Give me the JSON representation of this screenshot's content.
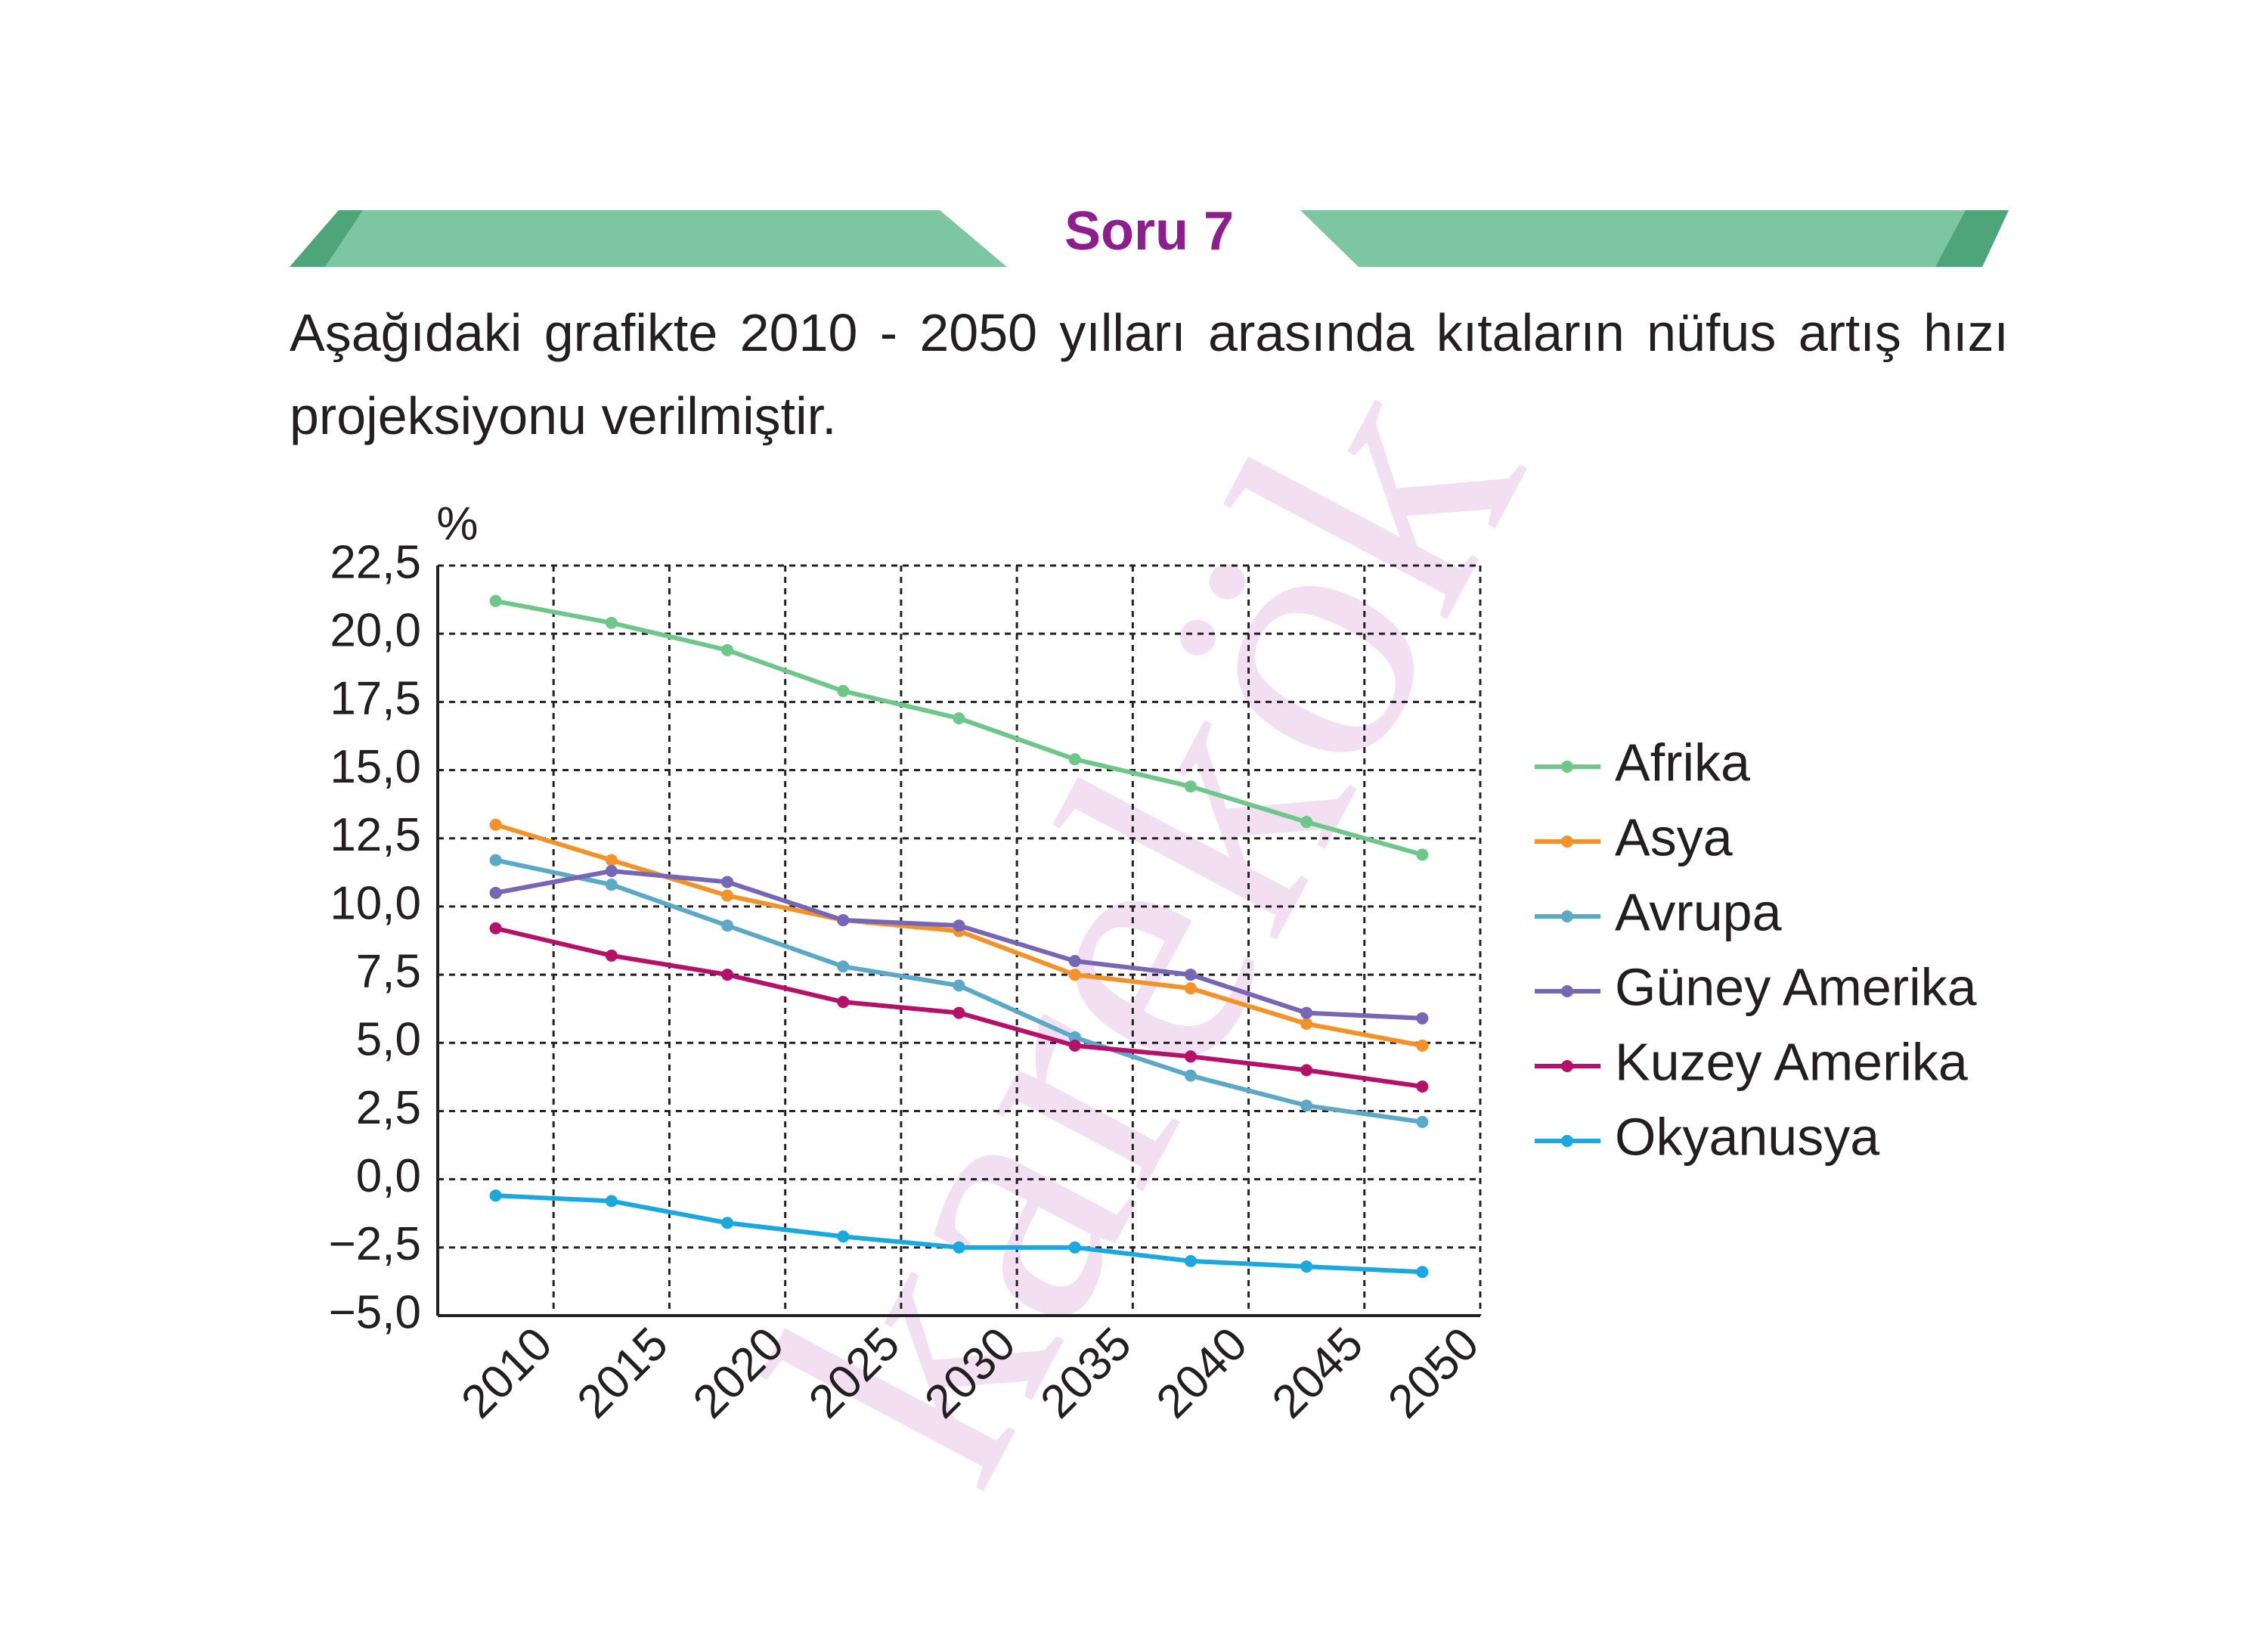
{
  "header": {
    "title": "Soru 7"
  },
  "question": "Aşağıdaki grafikte 2010 - 2050 yılları arasında kıtaların nüfus artış hızı projeksiyonu verilmiştir.",
  "watermark": "karekök",
  "chart_data": {
    "type": "line",
    "y_label": "%",
    "categories": [
      "2010",
      "2015",
      "2020",
      "2025",
      "2030",
      "2035",
      "2040",
      "2045",
      "2050"
    ],
    "ylim": [
      -5,
      22.5
    ],
    "yticks": [
      {
        "value": -5,
        "label": "−5,0"
      },
      {
        "value": -2.5,
        "label": "−2,5"
      },
      {
        "value": 0,
        "label": "0,0"
      },
      {
        "value": 2.5,
        "label": "2,5"
      },
      {
        "value": 5,
        "label": "5,0"
      },
      {
        "value": 7.5,
        "label": "7,5"
      },
      {
        "value": 10,
        "label": "10,0"
      },
      {
        "value": 12.5,
        "label": "12,5"
      },
      {
        "value": 15,
        "label": "15,0"
      },
      {
        "value": 17.5,
        "label": "17,5"
      },
      {
        "value": 20,
        "label": "20,0"
      },
      {
        "value": 22.5,
        "label": "22,5"
      }
    ],
    "grid": true,
    "legend": "right",
    "series": [
      {
        "name": "Afrika",
        "color": "#6cc788",
        "values": [
          21.2,
          20.4,
          19.4,
          17.9,
          16.9,
          15.4,
          14.4,
          13.1,
          11.9
        ]
      },
      {
        "name": "Asya",
        "color": "#f39229",
        "values": [
          13.0,
          11.7,
          10.4,
          9.5,
          9.1,
          7.5,
          7.0,
          5.7,
          4.9
        ]
      },
      {
        "name": "Avrupa",
        "color": "#5aa9c7",
        "values": [
          11.7,
          10.8,
          9.3,
          7.8,
          7.1,
          5.2,
          3.8,
          2.7,
          2.1
        ]
      },
      {
        "name": "Güney Amerika",
        "color": "#7765b5",
        "values": [
          10.5,
          11.3,
          10.9,
          9.5,
          9.3,
          8.0,
          7.5,
          6.1,
          5.9
        ]
      },
      {
        "name": "Kuzey Amerika",
        "color": "#b5116b",
        "values": [
          9.2,
          8.2,
          7.5,
          6.5,
          6.1,
          4.9,
          4.5,
          4.0,
          3.4
        ]
      },
      {
        "name": "Okyanusya",
        "color": "#1aa9df",
        "values": [
          -0.6,
          -0.8,
          -1.6,
          -2.1,
          -2.5,
          -2.5,
          -3.0,
          -3.2,
          -3.4
        ]
      }
    ]
  }
}
